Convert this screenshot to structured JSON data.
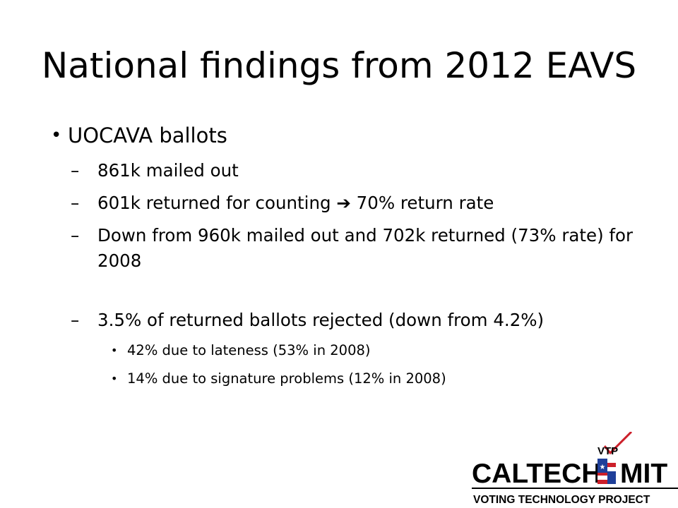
{
  "slide": {
    "title": "National findings from 2012 EAVS",
    "bullet": "UOCAVA ballots",
    "sub_items": [
      "861k mailed out",
      "601k returned for counting ➔ 70% return rate",
      "Down from 960k mailed out and 702k returned (73% rate) for 2008",
      "3.5% of returned ballots rejected (down from 4.2%)"
    ],
    "sub_sub_items": [
      "42% due to lateness (53% in 2008)",
      "14% due to signature problems (12% in 2008)"
    ]
  },
  "logo": {
    "left_word": "CALTECH",
    "right_word": "MIT",
    "vtp": "VTP",
    "tagline": "VOTING TECHNOLOGY PROJECT",
    "colors": {
      "text": "#000000",
      "flag_blue": "#1f3f99",
      "flag_red": "#cc1f2a",
      "check": "#cc1f2a"
    }
  },
  "symbols": {
    "bullet": "•",
    "dash": "–"
  }
}
